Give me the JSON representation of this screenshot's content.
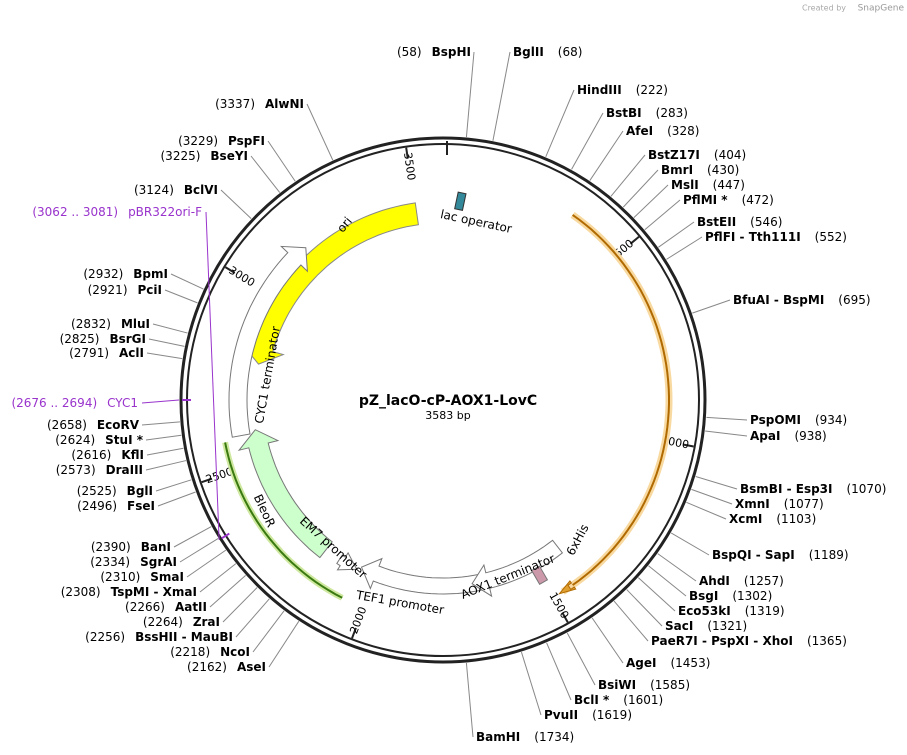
{
  "header": {
    "created_by": "Created by",
    "brand": "SnapGene"
  },
  "map": {
    "name": "pZ_lacO-cP-AOX1-LovC",
    "length": "3583 bp"
  },
  "ticks": [
    500,
    1000,
    1500,
    2000,
    2500,
    3000,
    3500
  ],
  "features": [
    {
      "label": "ori"
    },
    {
      "label": "lac operator"
    },
    {
      "label": "CYC1 terminator"
    },
    {
      "label": "BleoR"
    },
    {
      "label": "EM7 promoter"
    },
    {
      "label": "TEF1 promoter"
    },
    {
      "label": "AOX1 terminator"
    },
    {
      "label": "6xHis"
    }
  ],
  "sites": [
    {
      "name": "BglII",
      "position": "(68)"
    },
    {
      "name": "HindIII",
      "position": "(222)"
    },
    {
      "name": "BstBI",
      "position": "(283)"
    },
    {
      "name": "AfeI",
      "position": "(328)"
    },
    {
      "name": "BstZ17I",
      "position": "(404)"
    },
    {
      "name": "BmrI",
      "position": "(430)"
    },
    {
      "name": "MslI",
      "position": "(447)"
    },
    {
      "name": "PflMI *",
      "position": "(472)"
    },
    {
      "name": "BstEII",
      "position": "(546)"
    },
    {
      "name": "PflFI - Tth111I",
      "position": "(552)"
    },
    {
      "name": "BfuAI - BspMI",
      "position": "(695)"
    },
    {
      "name": "PspOMI",
      "position": "(934)"
    },
    {
      "name": "ApaI",
      "position": "(938)"
    },
    {
      "name": "BsmBI - Esp3I",
      "position": "(1070)"
    },
    {
      "name": "XmnI",
      "position": "(1077)"
    },
    {
      "name": "XcmI",
      "position": "(1103)"
    },
    {
      "name": "BspQI - SapI",
      "position": "(1189)"
    },
    {
      "name": "AhdI",
      "position": "(1257)"
    },
    {
      "name": "BsgI",
      "position": "(1302)"
    },
    {
      "name": "Eco53kI",
      "position": "(1319)"
    },
    {
      "name": "SacI",
      "position": "(1321)"
    },
    {
      "name": "PaeR7I - PspXI - XhoI",
      "position": "(1365)"
    },
    {
      "name": "AgeI",
      "position": "(1453)"
    },
    {
      "name": "BsiWI",
      "position": "(1585)"
    },
    {
      "name": "BclI *",
      "position": "(1601)"
    },
    {
      "name": "PvuII",
      "position": "(1619)"
    },
    {
      "name": "BamHI",
      "position": "(1734)"
    },
    {
      "name": "BspHI",
      "position": "(58)"
    },
    {
      "name": "AlwNI",
      "position": "(3337)"
    },
    {
      "name": "PspFI",
      "position": "(3229)"
    },
    {
      "name": "BseYI",
      "position": "(3225)"
    },
    {
      "name": "BclVI",
      "position": "(3124)"
    },
    {
      "name": "BpmI",
      "position": "(2932)"
    },
    {
      "name": "PciI",
      "position": "(2921)"
    },
    {
      "name": "MluI",
      "position": "(2832)"
    },
    {
      "name": "BsrGI",
      "position": "(2825)"
    },
    {
      "name": "AclI",
      "position": "(2791)"
    },
    {
      "name": "EcoRV",
      "position": "(2658)"
    },
    {
      "name": "StuI *",
      "position": "(2624)"
    },
    {
      "name": "KflI",
      "position": "(2616)"
    },
    {
      "name": "DraIII",
      "position": "(2573)"
    },
    {
      "name": "BglI",
      "position": "(2525)"
    },
    {
      "name": "FseI",
      "position": "(2496)"
    },
    {
      "name": "BanI",
      "position": "(2390)"
    },
    {
      "name": "SgrAI",
      "position": "(2334)"
    },
    {
      "name": "SmaI",
      "position": "(2310)"
    },
    {
      "name": "TspMI - XmaI",
      "position": "(2308)"
    },
    {
      "name": "AatII",
      "position": "(2266)"
    },
    {
      "name": "ZraI",
      "position": "(2264)"
    },
    {
      "name": "BssHII - MauBI",
      "position": "(2256)"
    },
    {
      "name": "NcoI",
      "position": "(2218)"
    },
    {
      "name": "AseI",
      "position": "(2162)"
    }
  ],
  "primers": [
    {
      "name": "pBR322ori-F",
      "position": "(3062 .. 3081)",
      "color": "#9933cc"
    },
    {
      "name": "CYC1",
      "position": "(2676 .. 2694)",
      "color": "#9933cc"
    }
  ]
}
